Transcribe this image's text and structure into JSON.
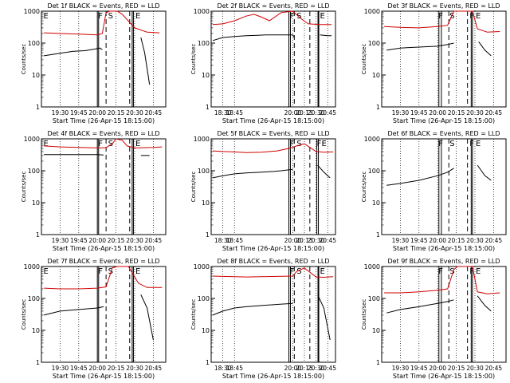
{
  "chart_data": [
    {
      "type": "line",
      "title": "Det 1f BLACK = Events, RED = LLD",
      "xlabel": "Start Time (26-Apr-15 18:15:00)",
      "ylabel": "Counts/sec",
      "yscale": "log",
      "ylim": [
        1,
        1000
      ],
      "xlim": [
        "19:15",
        "20:55"
      ],
      "x_ticks": [
        "19:30",
        "19:45",
        "20:00",
        "20:15",
        "20:30",
        "20:45"
      ],
      "y_ticks": [
        "1",
        "10",
        "100",
        "1000"
      ],
      "markers": [
        "E",
        "F",
        "S",
        "E"
      ],
      "colors": {
        "events": "#000000",
        "lld": "#d00000"
      },
      "series": [
        {
          "color": "#000000",
          "x": [
            "19:17",
            "19:30",
            "19:40",
            "19:50",
            "19:58",
            "20:02",
            "20:04",
            "20:05",
            "20:33",
            "20:35",
            "20:38",
            "20:42"
          ],
          "values": [
            40,
            48,
            55,
            58,
            65,
            70,
            62,
            null,
            null,
            150,
            50,
            5
          ]
        },
        {
          "color": "#d00000",
          "x": [
            "19:17",
            "19:30",
            "19:45",
            "20:00",
            "20:04",
            "20:07",
            "20:10",
            "20:13",
            "20:16",
            "20:20",
            "20:30",
            "20:40",
            "20:50"
          ],
          "values": [
            210,
            200,
            190,
            180,
            200,
            900,
            1000,
            1000,
            1000,
            800,
            300,
            220,
            210
          ]
        }
      ]
    },
    {
      "type": "line",
      "title": "Det 2f BLACK = Events, RED = LLD",
      "xlabel": "Start Time (26-Apr-15 18:15:00)",
      "ylabel": "Counts/sec",
      "yscale": "log",
      "ylim": [
        1,
        1000
      ],
      "xlim": [
        "18:15",
        "20:55"
      ],
      "x_ticks": [
        "18:30",
        "18:45",
        "20:00",
        "20:15",
        "20:30",
        "20:45"
      ],
      "y_ticks": [
        "1",
        "10",
        "100",
        "1000"
      ],
      "markers": [
        "F",
        "S",
        "E"
      ],
      "colors": {
        "events": "#000000",
        "lld": "#d00000"
      },
      "series": [
        {
          "color": "#000000",
          "x": [
            "18:17",
            "18:30",
            "18:45",
            "19:00",
            "19:15",
            "19:25",
            "20:00",
            "20:02",
            "20:05",
            "20:33",
            "20:35",
            "20:45",
            "20:50"
          ],
          "values": [
            120,
            150,
            160,
            170,
            175,
            180,
            180,
            150,
            null,
            null,
            180,
            170,
            170
          ]
        },
        {
          "color": "#d00000",
          "x": [
            "18:17",
            "18:30",
            "18:45",
            "19:00",
            "19:10",
            "19:20",
            "19:30",
            "19:45",
            "20:00",
            "20:10",
            "20:20",
            "20:35",
            "20:50"
          ],
          "values": [
            380,
            400,
            500,
            700,
            800,
            650,
            500,
            900,
            1000,
            600,
            400,
            380,
            380
          ]
        }
      ]
    },
    {
      "type": "line",
      "title": "Det 3f BLACK = Events, RED = LLD",
      "xlabel": "Start Time (26-Apr-15 18:15:00)",
      "ylabel": "Counts/sec",
      "yscale": "log",
      "ylim": [
        1,
        1000
      ],
      "xlim": [
        "19:15",
        "20:55"
      ],
      "x_ticks": [
        "19:30",
        "19:45",
        "20:00",
        "20:15",
        "20:30",
        "20:45"
      ],
      "y_ticks": [
        "1",
        "10",
        "100",
        "1000"
      ],
      "markers": [
        "F",
        "S",
        "F",
        "E"
      ],
      "colors": {
        "events": "#000000",
        "lld": "#d00000"
      },
      "series": [
        {
          "color": "#000000",
          "x": [
            "19:19",
            "19:30",
            "19:45",
            "20:00",
            "20:08",
            "20:13",
            "20:15",
            "20:30",
            "20:33",
            "20:38",
            "20:43"
          ],
          "values": [
            60,
            70,
            75,
            80,
            90,
            100,
            null,
            null,
            110,
            60,
            40
          ]
        },
        {
          "color": "#d00000",
          "x": [
            "19:17",
            "19:30",
            "19:45",
            "20:00",
            "20:08",
            "20:13",
            "20:16",
            "20:28",
            "20:32",
            "20:40",
            "20:50"
          ],
          "values": [
            330,
            310,
            300,
            330,
            360,
            1000,
            1000,
            1000,
            280,
            220,
            230
          ]
        }
      ]
    },
    {
      "type": "line",
      "title": "Det 4f BLACK = Events, RED = LLD",
      "xlabel": "Start Time (26-Apr-15 18:15:00)",
      "ylabel": "Counts/sec",
      "yscale": "log",
      "ylim": [
        1,
        1000
      ],
      "xlim": [
        "19:15",
        "20:55"
      ],
      "x_ticks": [
        "19:30",
        "19:45",
        "20:00",
        "20:15",
        "20:30",
        "20:45"
      ],
      "y_ticks": [
        "1",
        "10",
        "100",
        "1000"
      ],
      "markers": [
        "E",
        "F",
        "S",
        "E"
      ],
      "colors": {
        "events": "#000000",
        "lld": "#d00000"
      },
      "series": [
        {
          "color": "#000000",
          "x": [
            "19:17",
            "19:30",
            "19:45",
            "20:00",
            "20:05",
            "20:07",
            "20:33",
            "20:35",
            "20:42"
          ],
          "values": [
            320,
            320,
            320,
            320,
            310,
            null,
            null,
            300,
            300
          ]
        },
        {
          "color": "#d00000",
          "x": [
            "19:17",
            "19:30",
            "19:45",
            "20:00",
            "20:07",
            "20:12",
            "20:15",
            "20:20",
            "20:24",
            "20:30",
            "20:45",
            "20:52"
          ],
          "values": [
            600,
            560,
            540,
            520,
            530,
            700,
            1000,
            900,
            600,
            520,
            540,
            560
          ]
        }
      ]
    },
    {
      "type": "line",
      "title": "Det 5f BLACK = Events, RED = LLD",
      "xlabel": "Start Time (26-Apr-15 18:15:00)",
      "ylabel": "Counts/sec",
      "yscale": "log",
      "ylim": [
        1,
        1000
      ],
      "xlim": [
        "18:15",
        "20:55"
      ],
      "x_ticks": [
        "18:30",
        "18:45",
        "20:00",
        "20:15",
        "20:30",
        "20:45"
      ],
      "y_ticks": [
        "1",
        "10",
        "100",
        "1000"
      ],
      "markers": [
        "F",
        "S",
        "F",
        "E"
      ],
      "colors": {
        "events": "#000000",
        "lld": "#d00000"
      },
      "series": [
        {
          "color": "#000000",
          "x": [
            "18:17",
            "18:30",
            "18:45",
            "19:00",
            "19:20",
            "19:35",
            "19:45",
            "20:00",
            "20:05",
            "20:30",
            "20:32",
            "20:40",
            "20:48"
          ],
          "values": [
            60,
            70,
            80,
            85,
            90,
            95,
            100,
            110,
            null,
            null,
            150,
            90,
            60
          ]
        },
        {
          "color": "#d00000",
          "x": [
            "18:17",
            "18:30",
            "18:45",
            "19:00",
            "19:20",
            "19:40",
            "19:55",
            "20:05",
            "20:15",
            "20:30",
            "20:40",
            "20:52"
          ],
          "values": [
            420,
            400,
            390,
            370,
            380,
            420,
            500,
            600,
            700,
            400,
            380,
            390
          ]
        }
      ]
    },
    {
      "type": "line",
      "title": "Det 6f BLACK = Events, RED = LLD",
      "xlabel": "Start Time (26-Apr-15 18:15:00)",
      "ylabel": "Counts/sec",
      "yscale": "log",
      "ylim": [
        1,
        1000
      ],
      "xlim": [
        "19:15",
        "20:55"
      ],
      "x_ticks": [
        "19:30",
        "19:45",
        "20:00",
        "20:15",
        "20:30",
        "20:45"
      ],
      "y_ticks": [
        "1",
        "10",
        "100",
        "1000"
      ],
      "markers": [
        "F",
        "S",
        "F",
        "E"
      ],
      "colors": {
        "events": "#000000",
        "lld": "#d00000"
      },
      "series": [
        {
          "color": "#000000",
          "x": [
            "19:19",
            "19:30",
            "19:45",
            "20:00",
            "20:08",
            "20:13",
            "20:15",
            "20:28",
            "20:32",
            "20:38",
            "20:43"
          ],
          "values": [
            35,
            40,
            50,
            70,
            90,
            120,
            null,
            null,
            150,
            70,
            50
          ]
        }
      ]
    },
    {
      "type": "line",
      "title": "Det 7f BLACK = Events, RED = LLD",
      "xlabel": "Start Time (26-Apr-15 18:15:00)",
      "ylabel": "Counts/sec",
      "yscale": "log",
      "ylim": [
        1,
        1000
      ],
      "xlim": [
        "19:15",
        "20:55"
      ],
      "x_ticks": [
        "19:30",
        "19:45",
        "20:00",
        "20:15",
        "20:30",
        "20:45"
      ],
      "y_ticks": [
        "1",
        "10",
        "100",
        "1000"
      ],
      "markers": [
        "E",
        "F",
        "S",
        "E"
      ],
      "colors": {
        "events": "#000000",
        "lld": "#d00000"
      },
      "series": [
        {
          "color": "#000000",
          "x": [
            "19:17",
            "19:30",
            "19:45",
            "20:00",
            "20:05",
            "20:07",
            "20:33",
            "20:35",
            "20:40",
            "20:45"
          ],
          "values": [
            30,
            40,
            45,
            50,
            55,
            null,
            null,
            130,
            50,
            5
          ]
        },
        {
          "color": "#d00000",
          "x": [
            "19:17",
            "19:30",
            "19:45",
            "20:00",
            "20:07",
            "20:12",
            "20:16",
            "20:25",
            "20:33",
            "20:40",
            "20:52"
          ],
          "values": [
            210,
            200,
            200,
            210,
            230,
            900,
            1000,
            1000,
            300,
            220,
            220
          ]
        }
      ]
    },
    {
      "type": "line",
      "title": "Det 8f BLACK = Events, RED = LLD",
      "xlabel": "Start Time (26-Apr-15 18:15:00)",
      "ylabel": "Counts/sec",
      "yscale": "log",
      "ylim": [
        1,
        1000
      ],
      "xlim": [
        "18:15",
        "20:55"
      ],
      "x_ticks": [
        "18:30",
        "18:45",
        "20:00",
        "20:15",
        "20:30",
        "20:45"
      ],
      "y_ticks": [
        "1",
        "10",
        "100",
        "1000"
      ],
      "markers": [
        "F",
        "S",
        "E"
      ],
      "colors": {
        "events": "#000000",
        "lld": "#d00000"
      },
      "series": [
        {
          "color": "#000000",
          "x": [
            "18:17",
            "18:30",
            "18:45",
            "19:00",
            "19:20",
            "19:40",
            "20:00",
            "20:05",
            "20:30",
            "20:32",
            "20:40",
            "20:48"
          ],
          "values": [
            30,
            40,
            50,
            55,
            60,
            65,
            70,
            null,
            null,
            130,
            50,
            5
          ]
        },
        {
          "color": "#d00000",
          "x": [
            "18:17",
            "18:30",
            "18:45",
            "19:00",
            "19:20",
            "19:40",
            "20:00",
            "20:05",
            "20:15",
            "20:30",
            "20:40",
            "20:52"
          ],
          "values": [
            500,
            490,
            480,
            470,
            480,
            490,
            500,
            700,
            900,
            470,
            460,
            480
          ]
        }
      ]
    },
    {
      "type": "line",
      "title": "Det 9f BLACK = Events, RED = LLD",
      "xlabel": "Start Time (26-Apr-15 18:15:00)",
      "ylabel": "Counts/sec",
      "yscale": "log",
      "ylim": [
        1,
        1000
      ],
      "xlim": [
        "19:15",
        "20:55"
      ],
      "x_ticks": [
        "19:30",
        "19:45",
        "20:00",
        "20:15",
        "20:30",
        "20:45"
      ],
      "y_ticks": [
        "1",
        "10",
        "100",
        "1000"
      ],
      "markers": [
        "F",
        "S",
        "F",
        "E"
      ],
      "colors": {
        "events": "#000000",
        "lld": "#d00000"
      },
      "series": [
        {
          "color": "#000000",
          "x": [
            "19:19",
            "19:30",
            "19:45",
            "20:00",
            "20:08",
            "20:13",
            "20:15",
            "20:28",
            "20:32",
            "20:38",
            "20:43"
          ],
          "values": [
            35,
            45,
            55,
            70,
            80,
            90,
            null,
            null,
            120,
            60,
            40
          ]
        },
        {
          "color": "#d00000",
          "x": [
            "19:17",
            "19:30",
            "19:45",
            "20:00",
            "20:08",
            "20:13",
            "20:16",
            "20:28",
            "20:32",
            "20:40",
            "20:50"
          ],
          "values": [
            150,
            150,
            160,
            180,
            200,
            800,
            1000,
            1000,
            160,
            140,
            150
          ]
        }
      ]
    }
  ]
}
